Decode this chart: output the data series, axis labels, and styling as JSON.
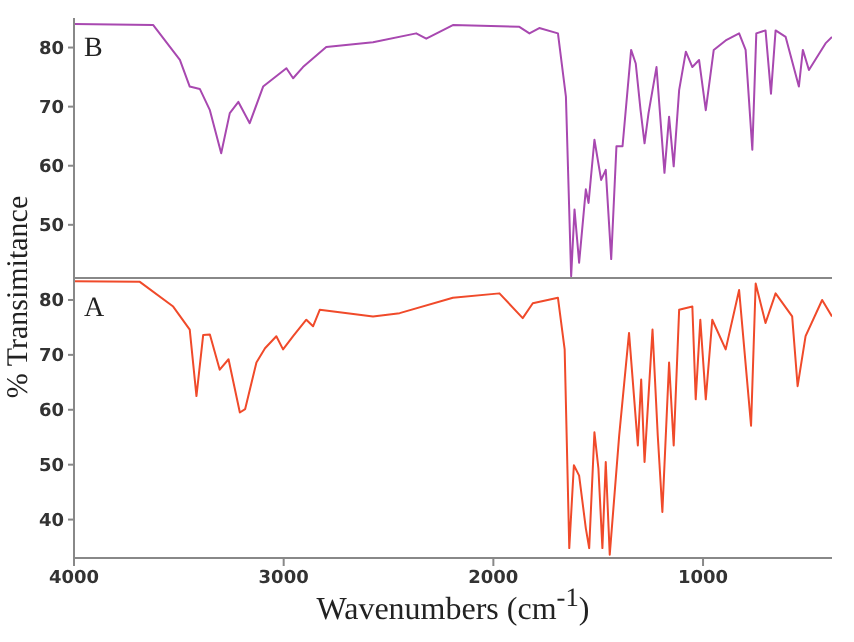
{
  "chart_data": [
    {
      "type": "line",
      "ylabel": "% Transimitance",
      "annotations": [
        "B"
      ],
      "tick_labels": "y",
      "x": [
        4000,
        3622,
        3495,
        3448,
        3400,
        3352,
        3298,
        3257,
        3216,
        3162,
        3098,
        2987,
        2955,
        2908,
        2797,
        2574,
        2368,
        2320,
        2193,
        1876,
        1828,
        1781,
        1692,
        1654,
        1629,
        1613,
        1591,
        1559,
        1546,
        1518,
        1486,
        1464,
        1438,
        1413,
        1384,
        1343,
        1321,
        1298,
        1279,
        1260,
        1222,
        1184,
        1162,
        1140,
        1114,
        1082,
        1051,
        1019,
        987,
        949,
        892,
        828,
        797,
        765,
        746,
        702,
        676,
        654,
        606,
        543,
        524,
        495,
        416,
        385
      ],
      "series": [
        {
          "color": "#a848b0",
          "values": [
            84.0,
            83.8,
            77.9,
            73.4,
            73.0,
            69.4,
            62.1,
            68.9,
            70.8,
            67.2,
            73.4,
            76.5,
            74.8,
            76.7,
            80.1,
            80.9,
            82.4,
            81.5,
            83.8,
            83.5,
            82.4,
            83.3,
            82.4,
            71.7,
            41.3,
            52.6,
            43.6,
            56.0,
            53.7,
            64.4,
            57.6,
            59.3,
            44.2,
            63.3,
            63.3,
            79.6,
            77.3,
            69.4,
            63.8,
            68.9,
            76.7,
            58.8,
            68.3,
            59.9,
            72.8,
            79.3,
            76.7,
            77.9,
            69.4,
            79.6,
            81.2,
            82.4,
            79.6,
            62.7,
            82.4,
            82.9,
            72.2,
            82.9,
            81.8,
            73.4,
            79.6,
            76.2,
            80.7,
            81.8
          ]
        }
      ],
      "xlim": [
        4000,
        385
      ],
      "xticks": [
        4000,
        3000,
        2000,
        1000
      ],
      "ylim": [
        41,
        85
      ],
      "yticks": [
        50,
        60,
        70,
        80
      ]
    },
    {
      "type": "line",
      "xlabel": "Wavenumbers (cm$^{-1}$)",
      "annotations": [
        "A"
      ],
      "x": [
        4000,
        3686,
        3527,
        3448,
        3416,
        3384,
        3352,
        3305,
        3263,
        3209,
        3184,
        3130,
        3089,
        3035,
        3003,
        2955,
        2892,
        2860,
        2828,
        2574,
        2447,
        2193,
        1971,
        1860,
        1812,
        1692,
        1660,
        1638,
        1616,
        1591,
        1559,
        1543,
        1518,
        1499,
        1480,
        1464,
        1445,
        1400,
        1353,
        1311,
        1295,
        1279,
        1241,
        1216,
        1194,
        1162,
        1140,
        1114,
        1051,
        1035,
        1013,
        987,
        956,
        892,
        828,
        771,
        749,
        702,
        654,
        575,
        549,
        511,
        432,
        385
      ],
      "series": [
        {
          "color": "#f04a2a",
          "values": [
            83.4,
            83.3,
            78.8,
            74.6,
            62.5,
            73.6,
            73.7,
            67.3,
            69.2,
            59.5,
            60.1,
            68.6,
            71.2,
            73.4,
            71.0,
            73.4,
            76.4,
            75.2,
            78.2,
            77.0,
            77.6,
            80.4,
            81.2,
            76.7,
            79.4,
            80.4,
            71.0,
            34.8,
            49.9,
            48.0,
            38.4,
            34.8,
            55.9,
            49.3,
            34.8,
            50.5,
            33.6,
            55.3,
            74.0,
            53.5,
            65.5,
            50.5,
            74.6,
            55.3,
            41.4,
            68.6,
            53.5,
            78.2,
            78.8,
            61.9,
            76.4,
            61.9,
            76.4,
            71.0,
            81.8,
            57.1,
            83.0,
            75.8,
            81.2,
            77.0,
            64.3,
            73.4,
            80.0,
            77.0
          ]
        }
      ],
      "xlim": [
        4000,
        385
      ],
      "xticks": [
        4000,
        3000,
        2000,
        1000
      ],
      "ylim": [
        33,
        84
      ],
      "yticks": [
        40,
        50,
        60,
        70,
        80
      ]
    }
  ]
}
